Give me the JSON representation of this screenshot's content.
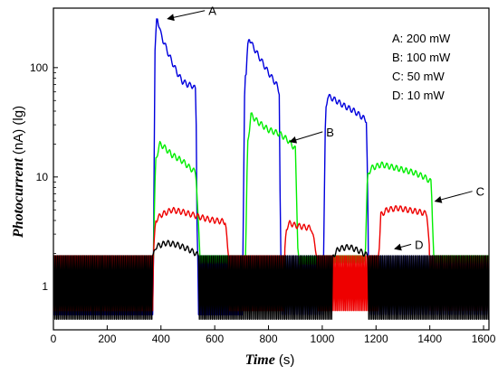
{
  "chart_data": {
    "type": "line",
    "xlabel": "Time",
    "xunit": "(s)",
    "ylabel": "Photocurrent",
    "yunit": "(nA) (lg)",
    "y_scale": "log",
    "xlim": [
      0,
      1620
    ],
    "ylim": [
      0.4,
      350
    ],
    "xticks": [
      0,
      200,
      400,
      600,
      800,
      1000,
      1200,
      1400,
      1600
    ],
    "yticks": [
      1,
      10,
      100
    ],
    "grid": false,
    "legend": {
      "placement": "top-right",
      "entries": [
        "A: 200 mW",
        "B: 100 mW",
        "C: 50 mW",
        "D: 10 mW"
      ]
    },
    "annotations": [
      {
        "label": "A",
        "x": 425,
        "y": 280
      },
      {
        "label": "B",
        "x": 880,
        "y": 21
      },
      {
        "label": "C",
        "x": 1420,
        "y": 6
      },
      {
        "label": "D",
        "x": 1270,
        "y": 2.2
      }
    ],
    "series": [
      {
        "color": "#0000dd",
        "on_segments": [
          {
            "x": [
              372,
              378,
              385,
              400,
              430,
              460,
              480,
              500,
              520,
              530,
              535
            ],
            "y": [
              1.9,
              140,
              300,
              200,
              130,
              90,
              75,
              70,
              68,
              62,
              1.9
            ]
          },
          {
            "x": [
              705,
              712,
              716,
              722,
              728,
              740,
              770,
              800,
              830,
              840,
              845
            ],
            "y": [
              1.9,
              100,
              80,
              150,
              190,
              160,
              120,
              90,
              70,
              60,
              1.9
            ]
          },
          {
            "x": [
              1005,
              1012,
              1020,
              1040,
              1080,
              1120,
              1150,
              1165,
              1172
            ],
            "y": [
              1.9,
              40,
              55,
              52,
              45,
              40,
              35,
              33,
              1.9
            ]
          }
        ],
        "baseline_amplitude": [
          0.55,
          1.9
        ]
      },
      {
        "color": "#00ee00",
        "on_segments": [
          {
            "x": [
              372,
              380,
              395,
              410,
              440,
              480,
              510,
              530,
              545
            ],
            "y": [
              1.9,
              14,
              20,
              19,
              16,
              14,
              12,
              11,
              1.9
            ]
          },
          {
            "x": [
              715,
              722,
              735,
              760,
              800,
              840,
              870,
              900,
              910
            ],
            "y": [
              1.9,
              20,
              37,
              32,
              27,
              25,
              22,
              18,
              1.9
            ]
          },
          {
            "x": [
              1160,
              1168,
              1180,
              1220,
              1280,
              1340,
              1380,
              1405,
              1415
            ],
            "y": [
              1.9,
              10,
              12,
              13,
              12,
              11,
              10,
              9,
              1.9
            ]
          }
        ],
        "baseline_amplitude": [
          1.6,
          1.9
        ]
      },
      {
        "color": "#ee0000",
        "on_segments": [
          {
            "x": [
              372,
              380,
              400,
              440,
              480,
              520,
              560,
              600,
              640,
              650
            ],
            "y": [
              1.9,
              4.0,
              4.5,
              5.0,
              4.8,
              4.5,
              4.2,
              4.0,
              3.9,
              1.9
            ]
          },
          {
            "x": [
              860,
              866,
              880,
              900,
              930,
              960,
              980
            ],
            "y": [
              1.9,
              3.4,
              3.8,
              3.6,
              3.5,
              3.4,
              1.9
            ]
          },
          {
            "x": [
              1210,
              1218,
              1240,
              1280,
              1320,
              1360,
              1390,
              1400
            ],
            "y": [
              1.9,
              4.5,
              5.0,
              5.2,
              5.0,
              4.8,
              4.6,
              1.9
            ]
          }
        ],
        "baseline_amplitude": [
          0.6,
          1.9
        ]
      },
      {
        "color": "#000000",
        "on_segments": [
          {
            "x": [
              372,
              380,
              420,
              460,
              500,
              530,
              540
            ],
            "y": [
              1.9,
              2.3,
              2.5,
              2.4,
              2.2,
              2.0,
              1.9
            ]
          },
          {
            "x": [
              1040,
              1060,
              1100,
              1140,
              1170
            ],
            "y": [
              1.9,
              2.2,
              2.3,
              2.1,
              1.9
            ]
          }
        ],
        "baseline_amplitude": [
          0.5,
          1.9
        ]
      }
    ]
  }
}
